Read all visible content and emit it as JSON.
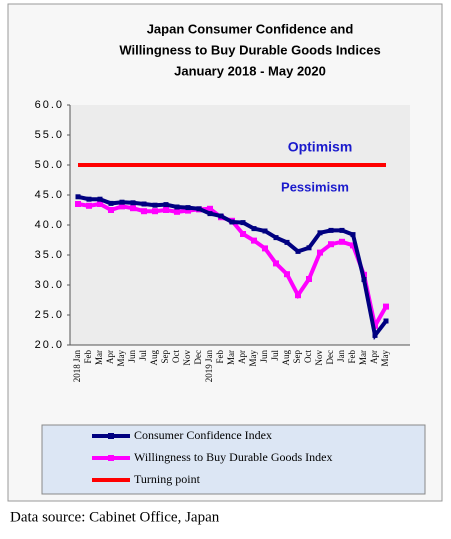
{
  "chart_data": {
    "type": "line",
    "title": [
      "Japan Consumer Confidence and",
      "Willingness to Buy Durable Goods Indices",
      "January 2018 - May 2020"
    ],
    "categories": [
      "2018 Jan",
      "Feb",
      "Mar",
      "Apr",
      "May",
      "Jun",
      "Jul",
      "Aug",
      "Sep",
      "Oct",
      "Nov",
      "Dec",
      "2019 Jan",
      "Feb",
      "Mar",
      "Apr",
      "May",
      "Jun",
      "Jul",
      "Aug",
      "Sep",
      "Oct",
      "Nov",
      "Dec",
      "Jan",
      "Feb",
      "Mar",
      "Apr",
      "May"
    ],
    "series": [
      {
        "name": "Consumer Confidence Index",
        "color": "#000080",
        "values": [
          44.7,
          44.3,
          44.3,
          43.6,
          43.8,
          43.7,
          43.5,
          43.3,
          43.4,
          43.0,
          42.9,
          42.7,
          41.9,
          41.5,
          40.5,
          40.4,
          39.4,
          39.0,
          37.9,
          37.1,
          35.6,
          36.2,
          38.7,
          39.1,
          39.1,
          38.4,
          30.9,
          21.6,
          24.0
        ]
      },
      {
        "name": "Willingness to Buy Durable Goods Index",
        "color": "#ff00ff",
        "values": [
          43.5,
          43.2,
          43.5,
          42.5,
          43.1,
          42.8,
          42.3,
          42.3,
          42.5,
          42.2,
          42.4,
          42.6,
          42.7,
          41.3,
          40.7,
          38.5,
          37.4,
          36.1,
          33.6,
          31.8,
          28.3,
          31.0,
          35.4,
          36.8,
          37.2,
          36.6,
          31.7,
          23.2,
          26.4
        ]
      },
      {
        "name": "Turning point",
        "color": "#ff0000",
        "values": [
          50,
          50,
          50,
          50,
          50,
          50,
          50,
          50,
          50,
          50,
          50,
          50,
          50,
          50,
          50,
          50,
          50,
          50,
          50,
          50,
          50,
          50,
          50,
          50,
          50,
          50,
          50,
          50,
          50
        ]
      }
    ],
    "ylim": [
      20,
      60
    ],
    "yticks": [
      {
        "value": 20,
        "label": "20.0"
      },
      {
        "value": 25,
        "label": "25.0"
      },
      {
        "value": 30,
        "label": "30.0"
      },
      {
        "value": 35,
        "label": "35.0"
      },
      {
        "value": 40,
        "label": "40.0"
      },
      {
        "value": 45,
        "label": "45.0"
      },
      {
        "value": 50,
        "label": "50.0"
      },
      {
        "value": 55,
        "label": "55.0"
      },
      {
        "value": 60,
        "label": "60.0"
      }
    ],
    "annotations": [
      "Optimism",
      "Pessimism"
    ],
    "source": "Data source: Cabinet Office, Japan"
  }
}
